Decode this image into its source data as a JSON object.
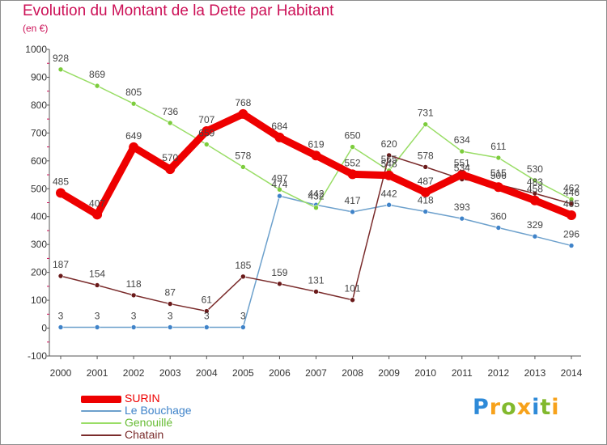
{
  "title": "Evolution du Montant de la Dette par Habitant",
  "subtitle": "(en €)",
  "logo": {
    "letters": [
      "P",
      "r",
      "o",
      "x",
      "i",
      "t",
      "i"
    ],
    "colors": [
      "#2e8ad8",
      "#f7a21b",
      "#82b92d",
      "#f7a21b",
      "#2e8ad8",
      "#82b92d",
      "#f7a21b"
    ]
  },
  "chart_data": {
    "type": "line",
    "title": "Evolution du Montant de la Dette par Habitant",
    "subtitle": "(en €)",
    "x": [
      2000,
      2001,
      2002,
      2003,
      2004,
      2005,
      2006,
      2007,
      2008,
      2009,
      2010,
      2011,
      2012,
      2013,
      2014
    ],
    "ylim": [
      -100,
      1000
    ],
    "yticks": [
      -100,
      0,
      100,
      200,
      300,
      400,
      500,
      600,
      700,
      800,
      900,
      1000
    ],
    "grid": false,
    "legend": "bottom-left",
    "series": [
      {
        "name": "SURIN",
        "color": "#ee0000",
        "width": 9,
        "values": [
          485,
          407,
          649,
          570,
          707,
          768,
          684,
          619,
          552,
          548,
          487,
          551,
          506,
          458,
          405
        ]
      },
      {
        "name": "Le Bouchage",
        "color": "#6ca0cc",
        "width": 1.5,
        "marker": "#3f83c9",
        "values": [
          3,
          3,
          3,
          3,
          3,
          3,
          474,
          442,
          417,
          442,
          418,
          393,
          360,
          329,
          296
        ]
      },
      {
        "name": "Genouillé",
        "color": "#99dd66",
        "width": 1.5,
        "marker": "#7ccc3c",
        "values": [
          928,
          869,
          805,
          736,
          659,
          578,
          497,
          432,
          650,
          565,
          731,
          634,
          611,
          530,
          462
        ]
      },
      {
        "name": "Chatain",
        "color": "#7a2b2b",
        "width": 1.5,
        "marker": "#6a1a1a",
        "values": [
          187,
          154,
          118,
          87,
          61,
          185,
          159,
          131,
          101,
          620,
          578,
          534,
          515,
          483,
          446
        ]
      }
    ]
  }
}
